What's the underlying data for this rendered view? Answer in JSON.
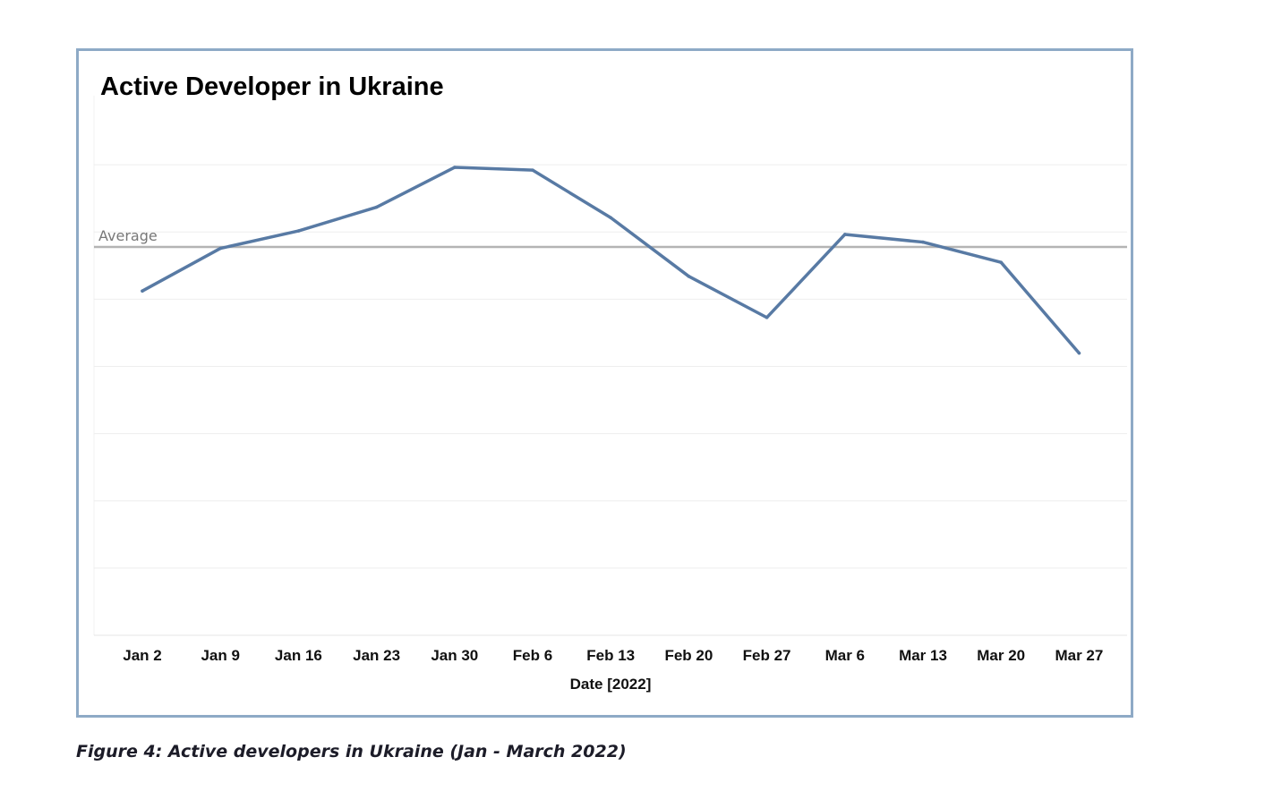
{
  "caption": "Figure 4: Active developers in Ukraine (Jan - March 2022)",
  "chart_data": {
    "type": "line",
    "title": "Active Developer in Ukraine",
    "xlabel": "Date [2022]",
    "ylabel": "",
    "categories": [
      "Jan 2",
      "Jan 9",
      "Jan 16",
      "Jan 23",
      "Jan 30",
      "Feb 6",
      "Feb 13",
      "Feb 20",
      "Feb 27",
      "Mar 6",
      "Mar 13",
      "Mar 20",
      "Mar 27"
    ],
    "series": [
      {
        "values": [
          49.3,
          55.4,
          57.9,
          61.3,
          67.0,
          66.6,
          59.8,
          51.4,
          45.5,
          57.4,
          56.3,
          53.4,
          40.4
        ],
        "color": "#587aa4"
      }
    ],
    "reference_line": {
      "label": "Average",
      "value": 55.6,
      "color": "#b4b4b4"
    },
    "ylim": [
      0,
      77.0
    ],
    "y_ticks_shown": false,
    "grid": true,
    "legend": "none"
  }
}
